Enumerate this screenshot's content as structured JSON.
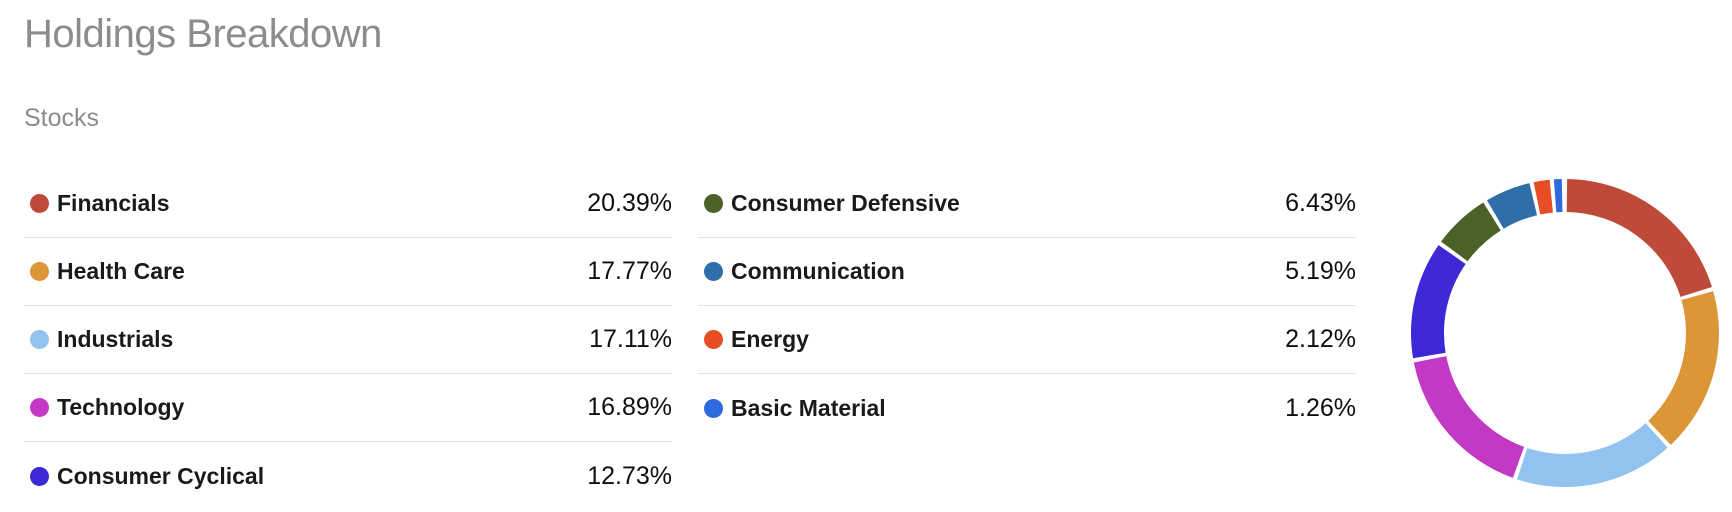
{
  "header": {
    "title": "Holdings Breakdown",
    "section": "Stocks"
  },
  "chart_data": {
    "type": "pie",
    "variant": "donut",
    "title": "Holdings Breakdown",
    "subtitle": "Stocks",
    "unit": "%",
    "direction": "clockwise",
    "start_angle_deg_from_top": 0,
    "inner_radius_ratio": 0.785,
    "pad_angle_deg": 1.6,
    "legend_position": "left, two columns",
    "series": [
      {
        "name": "Financials",
        "value": 20.39,
        "display": "20.39%",
        "color": "#be4b3a"
      },
      {
        "name": "Health Care",
        "value": 17.77,
        "display": "17.77%",
        "color": "#db9637"
      },
      {
        "name": "Industrials",
        "value": 17.11,
        "display": "17.11%",
        "color": "#92c3ee"
      },
      {
        "name": "Technology",
        "value": 16.89,
        "display": "16.89%",
        "color": "#c338c4"
      },
      {
        "name": "Consumer Cyclical",
        "value": 12.73,
        "display": "12.73%",
        "color": "#3e27d4"
      },
      {
        "name": "Consumer Defensive",
        "value": 6.43,
        "display": "6.43%",
        "color": "#4c6127"
      },
      {
        "name": "Communication",
        "value": 5.19,
        "display": "5.19%",
        "color": "#2f6ea9"
      },
      {
        "name": "Energy",
        "value": 2.12,
        "display": "2.12%",
        "color": "#e94d26"
      },
      {
        "name": "Basic Material",
        "value": 1.26,
        "display": "1.26%",
        "color": "#2f69df"
      }
    ],
    "legend_columns": [
      [
        0,
        1,
        2,
        3,
        4
      ],
      [
        5,
        6,
        7,
        8
      ]
    ]
  }
}
